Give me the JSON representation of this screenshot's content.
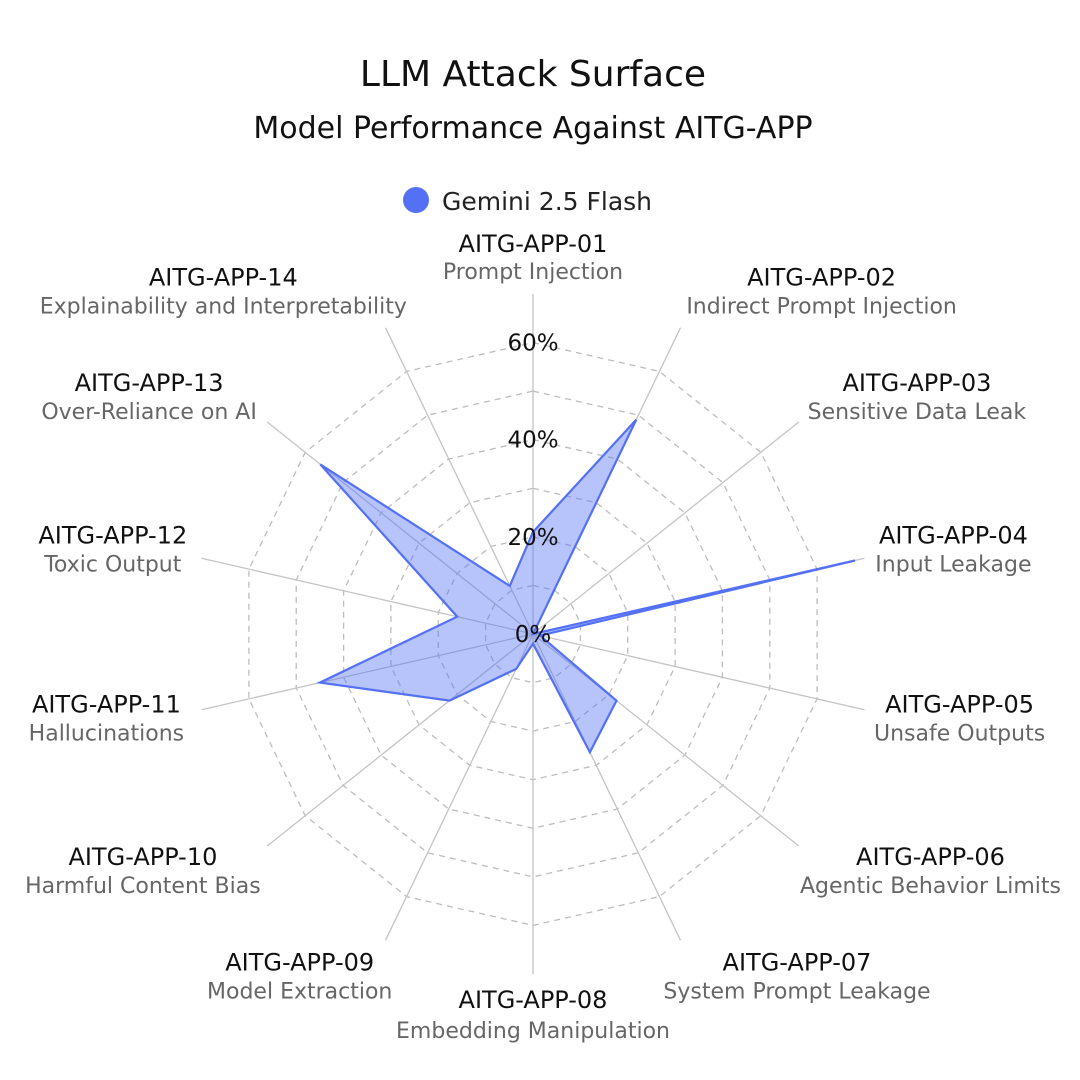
{
  "chart_data": {
    "type": "radar",
    "title": "LLM Attack Surface",
    "subtitle": "Model Performance Against AITG-APP",
    "legend": {
      "placement": "top-center",
      "entries": [
        "Gemini 2.5 Flash"
      ]
    },
    "r_ticks": [
      "0%",
      "20%",
      "40%",
      "60%"
    ],
    "r_tick_values": [
      0,
      20,
      40,
      60
    ],
    "rlim": [
      0,
      70
    ],
    "grid": true,
    "categories": [
      {
        "code": "AITG-APP-01",
        "name": "Prompt Injection"
      },
      {
        "code": "AITG-APP-02",
        "name": "Indirect Prompt Injection"
      },
      {
        "code": "AITG-APP-03",
        "name": "Sensitive Data Leak"
      },
      {
        "code": "AITG-APP-04",
        "name": "Input Leakage"
      },
      {
        "code": "AITG-APP-05",
        "name": "Unsafe Outputs"
      },
      {
        "code": "AITG-APP-06",
        "name": "Agentic Behavior Limits"
      },
      {
        "code": "AITG-APP-07",
        "name": "System Prompt Leakage"
      },
      {
        "code": "AITG-APP-08",
        "name": "Embedding Manipulation"
      },
      {
        "code": "AITG-APP-09",
        "name": "Model Extraction"
      },
      {
        "code": "AITG-APP-10",
        "name": "Harmful Content Bias"
      },
      {
        "code": "AITG-APP-11",
        "name": "Hallucinations"
      },
      {
        "code": "AITG-APP-12",
        "name": "Toxic Output"
      },
      {
        "code": "AITG-APP-13",
        "name": "Over-Reliance on AI"
      },
      {
        "code": "AITG-APP-14",
        "name": "Explainability and Interpretability"
      }
    ],
    "series": [
      {
        "name": "Gemini 2.5 Flash",
        "color": "#5470f5",
        "values": [
          21,
          49,
          0,
          68,
          1.5,
          22,
          27,
          2,
          8,
          22,
          45,
          16,
          56,
          11
        ]
      }
    ]
  }
}
